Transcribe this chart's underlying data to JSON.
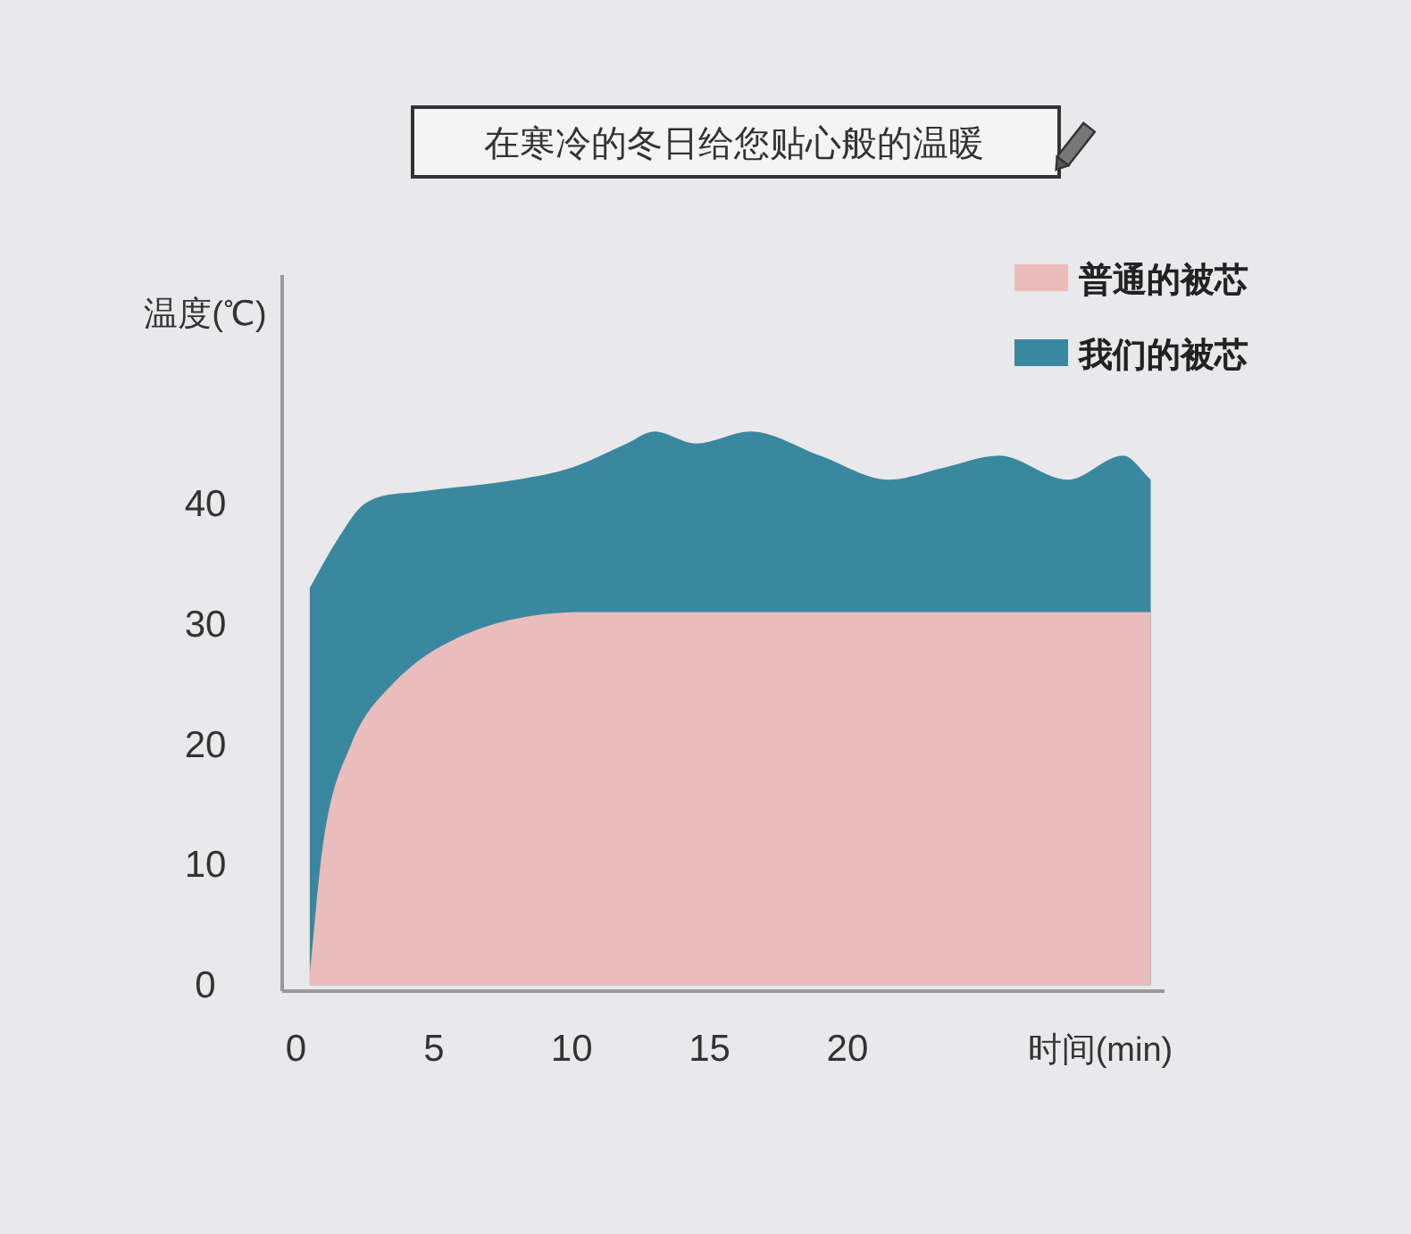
{
  "chart_data": {
    "type": "area",
    "title": "在寒冷的冬日给您贴心般的温暖",
    "xlabel": "时间(min)",
    "ylabel": "温度(℃)",
    "xlim": [
      -0.5,
      31.5
    ],
    "ylim": [
      -0.5,
      59
    ],
    "xticks": [
      0,
      5,
      10,
      15,
      20
    ],
    "yticks": [
      0,
      10,
      20,
      30,
      40
    ],
    "legend": "top right",
    "series": [
      {
        "name": "普通的被芯",
        "color": "#eabcbb",
        "x": [
          0.5,
          1,
          2,
          3.5,
          6,
          10.5,
          31
        ],
        "values": [
          1,
          12,
          20,
          25,
          29,
          31,
          31
        ]
      },
      {
        "name": "我们的被芯",
        "color": "#3a88a0",
        "x": [
          0.5,
          1.5,
          2.5,
          4.5,
          8,
          10,
          12,
          13,
          14.5,
          16.5,
          19,
          21.5,
          23.5,
          25.5,
          28,
          30,
          31
        ],
        "values": [
          33,
          37,
          40,
          41,
          42,
          43,
          45,
          46,
          45,
          46,
          44,
          42,
          43,
          44,
          42,
          44,
          42
        ]
      }
    ]
  }
}
